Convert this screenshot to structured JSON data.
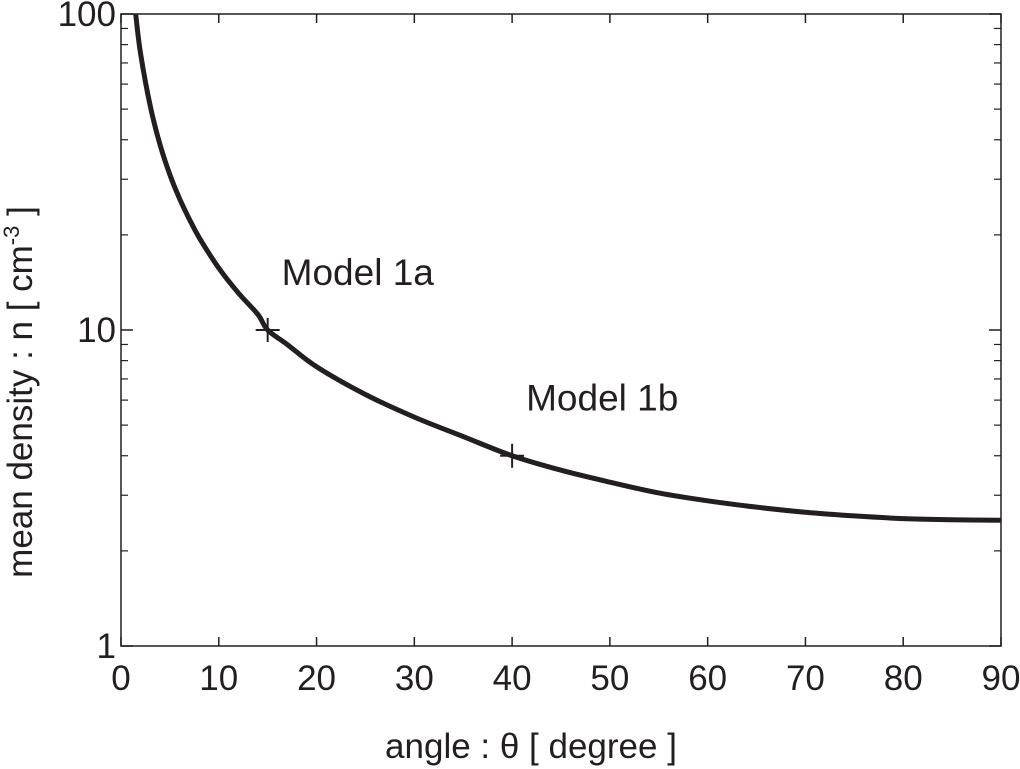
{
  "chart_data": {
    "type": "line",
    "title": "",
    "xlabel": "angle : θ [ degree ]",
    "ylabel_main": "mean density : n [ cm",
    "ylabel_sup": "-3",
    "ylabel_end": " ]",
    "xlim": [
      0,
      90
    ],
    "ylim": [
      1,
      100
    ],
    "yscale": "log",
    "grid": false,
    "x_ticks": [
      0,
      10,
      20,
      30,
      40,
      50,
      60,
      70,
      80,
      90
    ],
    "x_tick_labels": [
      "0",
      "10",
      "20",
      "30",
      "40",
      "50",
      "60",
      "70",
      "80",
      "90"
    ],
    "y_ticks": [
      1,
      10,
      100
    ],
    "y_tick_labels": [
      "1",
      "10",
      "100"
    ],
    "series": [
      {
        "x": [
          1.5,
          2,
          3,
          4,
          5,
          6,
          7,
          8,
          10,
          12,
          14,
          15,
          17,
          20,
          25,
          30,
          35,
          40,
          45,
          50,
          55,
          60,
          65,
          70,
          75,
          80,
          85,
          90
        ],
        "values": [
          100,
          75,
          51,
          38.5,
          31,
          26,
          22.4,
          19.6,
          15.7,
          13.1,
          11.2,
          10.0,
          9.0,
          7.65,
          6.25,
          5.3,
          4.6,
          4.0,
          3.6,
          3.3,
          3.05,
          2.88,
          2.75,
          2.65,
          2.58,
          2.53,
          2.51,
          2.5
        ],
        "color": "#231f20"
      }
    ],
    "markers": [
      {
        "x": 15,
        "y": 10,
        "label": "Model 1a"
      },
      {
        "x": 40,
        "y": 4,
        "label": "Model 1b"
      }
    ]
  }
}
